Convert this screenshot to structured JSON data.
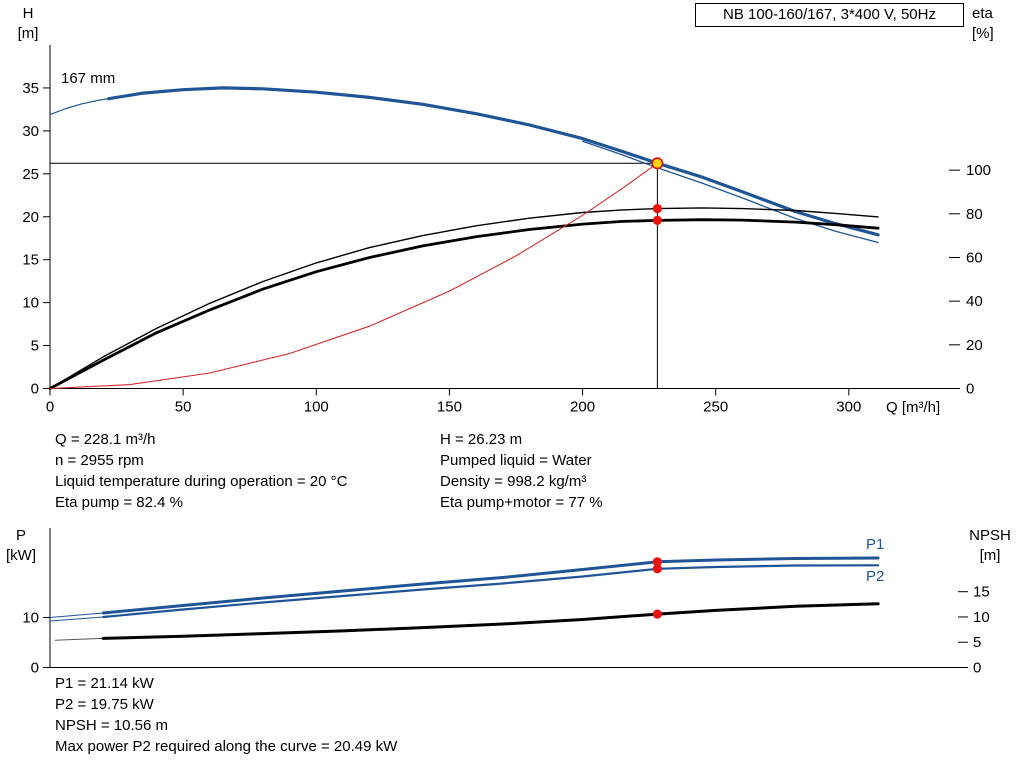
{
  "title_box": {
    "label": "NB 100-160/167, 3*400 V, 50Hz"
  },
  "labels": {
    "h_axis": "H",
    "h_unit": "[m]",
    "eta_axis": "eta",
    "eta_unit": "[%]",
    "q_axis": "Q [m³/h]",
    "p_axis": "P",
    "p_unit": "[kW]",
    "npsh_axis": "NPSH",
    "npsh_unit": "[m]",
    "impeller": "167 mm",
    "p1": "P1",
    "p2": "P2"
  },
  "info": {
    "left": [
      "Q = 228.1 m³/h",
      "n = 2955 rpm",
      "Liquid temperature during operation = 20 °C",
      "Eta pump = 82.4 %"
    ],
    "right": [
      "H = 26.23 m",
      "Pumped liquid = Water",
      "Density = 998.2 kg/m³",
      "Eta pump+motor = 77 %"
    ]
  },
  "results": [
    "P1 = 21.14 kW",
    "P2 = 19.75 kW",
    "NPSH = 10.56 m",
    "Max power P2 required along the curve = 20.49 kW"
  ],
  "colors": {
    "curve_blue": "#1f5496",
    "curve_black": "#000000",
    "system_red": "#d22b2b",
    "dot_red": "#e8130c",
    "duty_fill": "#ffd400",
    "duty_ring": "#d41111"
  },
  "chart_data": [
    {
      "type": "line",
      "title": "NB 100-160/167, 3*400 V, 50Hz",
      "xlabel": "Q [m³/h]",
      "ylabel_left": "H [m]",
      "ylabel_right": "eta [%]",
      "xlim": [
        0,
        341
      ],
      "x_ticks": [
        0,
        50,
        100,
        150,
        200,
        250,
        300
      ],
      "ylim_left": [
        0,
        40
      ],
      "y_ticks_left": [
        0,
        5,
        10,
        15,
        20,
        25,
        30,
        35
      ],
      "ylim_right": [
        0,
        157.3
      ],
      "y_ticks_right": [
        0,
        20,
        40,
        60,
        80,
        100
      ],
      "grid": false,
      "duty_point": {
        "q": 228.1,
        "h": 26.23,
        "eta_pump": 82.4,
        "eta_pump_motor": 77
      },
      "crosshair": {
        "q": 228.1,
        "h": 26.23
      },
      "series": [
        {
          "name": "head-curve-lead",
          "axis": "left",
          "color": "#1f5496",
          "width": 1.2,
          "x": [
            0,
            6,
            12,
            18,
            24
          ],
          "y": [
            31.9,
            32.6,
            33.15,
            33.55,
            33.85
          ]
        },
        {
          "name": "head-curve-167mm",
          "axis": "left",
          "color": "#1f5496",
          "width": 3.2,
          "x": [
            22,
            35,
            50,
            65,
            80,
            100,
            120,
            140,
            160,
            180,
            200,
            215,
            228.1,
            245,
            260,
            280,
            295,
            311
          ],
          "y": [
            33.75,
            34.4,
            34.8,
            35.0,
            34.9,
            34.5,
            33.9,
            33.1,
            32.0,
            30.7,
            29.1,
            27.6,
            26.23,
            24.6,
            22.9,
            20.6,
            19.2,
            17.9
          ]
        },
        {
          "name": "head-curve-trim",
          "axis": "left",
          "color": "#1f5496",
          "width": 1.3,
          "x": [
            200,
            215,
            228.1,
            245,
            260,
            280,
            295,
            311
          ],
          "y": [
            28.8,
            27.2,
            25.7,
            23.9,
            22.2,
            19.8,
            18.3,
            17.0
          ]
        },
        {
          "name": "eta-pump-curve",
          "axis": "right",
          "color": "#000000",
          "width": 1.4,
          "x": [
            0,
            20,
            40,
            60,
            80,
            100,
            120,
            140,
            160,
            180,
            200,
            215,
            228.1,
            245,
            260,
            280,
            295,
            311
          ],
          "y": [
            0,
            14.5,
            27.5,
            39,
            49,
            57.5,
            64.5,
            70,
            74.5,
            78,
            80.6,
            81.8,
            82.4,
            82.7,
            82.4,
            81.5,
            80.2,
            78.6
          ]
        },
        {
          "name": "eta-pump-motor-curve",
          "axis": "right",
          "color": "#000000",
          "width": 2.8,
          "x": [
            0,
            20,
            40,
            60,
            80,
            100,
            120,
            140,
            160,
            180,
            200,
            215,
            228.1,
            245,
            260,
            280,
            295,
            311
          ],
          "y": [
            0,
            13,
            25.5,
            36,
            45.5,
            53.5,
            60,
            65.3,
            69.5,
            72.8,
            75.3,
            76.5,
            77,
            77.3,
            77.1,
            76.2,
            75,
            73.4
          ]
        },
        {
          "name": "system-curve",
          "axis": "left",
          "color": "#d22b2b",
          "width": 1.1,
          "x": [
            0,
            30,
            60,
            90,
            120,
            150,
            175,
            200,
            215,
            228.1
          ],
          "y": [
            0,
            0.45,
            1.81,
            4.08,
            7.26,
            11.34,
            15.44,
            20.17,
            23.31,
            26.23
          ]
        }
      ],
      "markers": [
        {
          "name": "eta-pump-point",
          "axis": "right",
          "x": 228.1,
          "y": 82.4,
          "style": "red-dot"
        },
        {
          "name": "eta-pump-motor-point",
          "axis": "right",
          "x": 228.1,
          "y": 77,
          "style": "red-dot"
        },
        {
          "name": "duty-point",
          "axis": "left",
          "x": 228.1,
          "y": 26.23,
          "style": "duty"
        }
      ]
    },
    {
      "type": "line",
      "ylabel_left": "P [kW]",
      "ylabel_right": "NPSH [m]",
      "xlim": [
        0,
        341
      ],
      "ylim_left": [
        0,
        27.9
      ],
      "y_ticks_left": [
        0,
        10
      ],
      "ylim_right": [
        0,
        27.6
      ],
      "y_ticks_right": [
        0,
        5,
        10,
        15
      ],
      "grid": false,
      "series": [
        {
          "name": "p1-curve-lead",
          "axis": "left",
          "color": "#1f5496",
          "width": 1,
          "x": [
            0,
            10,
            20
          ],
          "y": [
            10.0,
            10.45,
            10.9
          ]
        },
        {
          "name": "p1-curve",
          "axis": "left",
          "color": "#1f5496",
          "width": 3,
          "x": [
            20,
            50,
            80,
            110,
            140,
            170,
            200,
            228.1,
            250,
            280,
            311
          ],
          "y": [
            10.9,
            12.4,
            13.9,
            15.3,
            16.7,
            18.0,
            19.6,
            21.14,
            21.5,
            21.8,
            21.9
          ]
        },
        {
          "name": "p2-curve-lead",
          "axis": "left",
          "color": "#1f5496",
          "width": 1,
          "x": [
            0,
            10,
            20
          ],
          "y": [
            9.3,
            9.7,
            10.1
          ]
        },
        {
          "name": "p2-curve",
          "axis": "left",
          "color": "#1f5496",
          "width": 2.2,
          "x": [
            20,
            50,
            80,
            110,
            140,
            170,
            200,
            228.1,
            250,
            280,
            311
          ],
          "y": [
            10.1,
            11.6,
            13.0,
            14.3,
            15.6,
            16.8,
            18.2,
            19.75,
            20.1,
            20.4,
            20.45
          ]
        },
        {
          "name": "npsh-curve-lead",
          "axis": "right",
          "color": "#555555",
          "width": 1,
          "x": [
            2,
            10,
            20
          ],
          "y": [
            5.4,
            5.55,
            5.75
          ]
        },
        {
          "name": "npsh-curve",
          "axis": "right",
          "color": "#000000",
          "width": 3,
          "x": [
            20,
            50,
            80,
            110,
            140,
            170,
            200,
            228.1,
            250,
            280,
            311
          ],
          "y": [
            5.75,
            6.2,
            6.7,
            7.25,
            7.9,
            8.6,
            9.5,
            10.56,
            11.3,
            12.1,
            12.6
          ]
        }
      ],
      "markers": [
        {
          "name": "p1-point",
          "axis": "left",
          "x": 228.1,
          "y": 21.14,
          "style": "red-dot"
        },
        {
          "name": "p2-point",
          "axis": "left",
          "x": 228.1,
          "y": 19.75,
          "style": "red-dot"
        },
        {
          "name": "npsh-point",
          "axis": "right",
          "x": 228.1,
          "y": 10.56,
          "style": "red-dot"
        }
      ]
    }
  ]
}
